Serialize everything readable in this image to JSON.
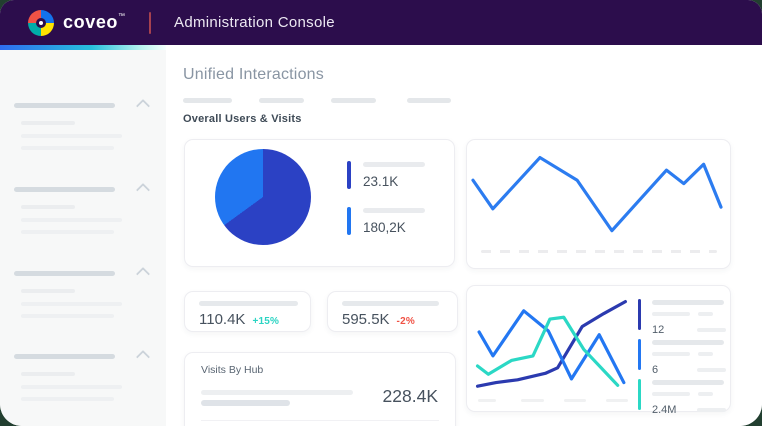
{
  "window": {
    "brand": "coveo",
    "trademark": "™",
    "app_title": "Administration Console",
    "header_bg": "#2c0d4c",
    "accent_gradient": [
      "#2e6cf0",
      "#27c0dc",
      "#f6fffe"
    ]
  },
  "main": {
    "title": "Unified Interactions",
    "section_title": "Overall Users & Visits"
  },
  "stats": [
    {
      "value": "110.4K",
      "delta": "+15%",
      "delta_color": "#2bd4c3"
    },
    {
      "value": "595.5K",
      "delta": "-2%",
      "delta_color": "#f05245"
    }
  ],
  "visits_by_hub": {
    "title": "Visits By Hub",
    "value": "228.4K"
  },
  "chart_data": [
    {
      "type": "pie",
      "title": "Overall Users & Visits pie",
      "slices": [
        {
          "label": "23.1K",
          "pct": 65,
          "color": "#2b41c4"
        },
        {
          "label": "180,2K",
          "pct": 35,
          "color": "#2176f1"
        }
      ],
      "legend_position": "right"
    },
    {
      "type": "line",
      "title": "Visits trend sparkline",
      "x_axis": "skeleton-dashes",
      "grid": false,
      "series": [
        {
          "name": "visits",
          "color": "#2c7cf0",
          "points": [
            [
              0,
              36
            ],
            [
              8,
              70
            ],
            [
              27,
              9
            ],
            [
              42,
              36
            ],
            [
              56,
              96
            ],
            [
              78,
              24
            ],
            [
              85,
              40
            ],
            [
              93,
              17
            ],
            [
              100,
              68
            ]
          ]
        }
      ]
    },
    {
      "type": "line",
      "title": "Interactions multi-line",
      "x_axis": "skeleton-dashes",
      "grid": false,
      "legend_position": "right",
      "series": [
        {
          "name": "series-indigo",
          "legend": "12",
          "color": "#2b3aaf",
          "points": [
            [
              1,
              97
            ],
            [
              13,
              93
            ],
            [
              27,
              90
            ],
            [
              45,
              83
            ],
            [
              53,
              77
            ],
            [
              69,
              32
            ],
            [
              83,
              18
            ],
            [
              97,
              5
            ]
          ]
        },
        {
          "name": "series-blue",
          "legend": "6",
          "color": "#2377f2",
          "points": [
            [
              2,
              38
            ],
            [
              11,
              64
            ],
            [
              31,
              15
            ],
            [
              47,
              37
            ],
            [
              62,
              89
            ],
            [
              80,
              41
            ],
            [
              96,
              93
            ]
          ]
        },
        {
          "name": "series-teal",
          "legend": "2.4M",
          "color": "#2bd8c5",
          "points": [
            [
              1,
              75
            ],
            [
              8,
              84
            ],
            [
              23,
              69
            ],
            [
              37,
              64
            ],
            [
              48,
              24
            ],
            [
              57,
              22
            ],
            [
              70,
              57
            ],
            [
              92,
              96
            ]
          ]
        }
      ]
    }
  ]
}
